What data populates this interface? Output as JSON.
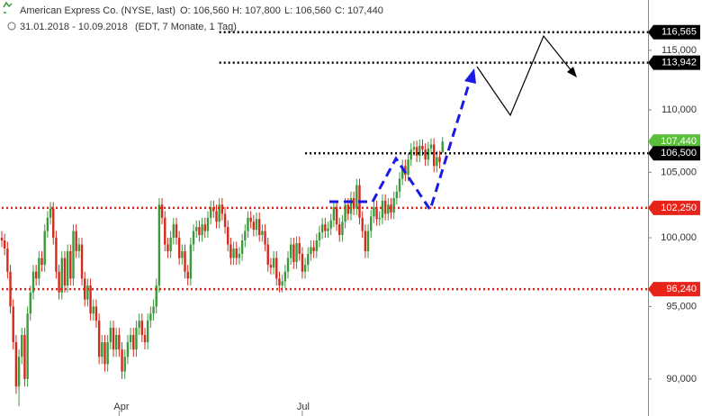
{
  "chart_data": {
    "type": "candlestick",
    "header": {
      "name": "American Express Co. (NYSE, last)",
      "open": "O: 106,560",
      "high": "H: 107,800",
      "low": "L: 106,560",
      "close": "C: 107,440",
      "range": "31.01.2018 - 10.09.2018",
      "info": "(EDT, 7 Monate, 1 Tag)"
    },
    "categories": [
      null,
      null,
      null,
      null,
      null,
      null,
      null,
      null,
      null,
      null,
      null,
      null,
      null,
      null,
      null,
      null,
      null,
      null,
      null,
      null,
      null,
      null,
      null,
      null,
      null,
      null,
      null,
      null,
      null,
      null,
      null,
      null,
      null,
      null,
      null,
      null,
      null,
      null,
      null,
      null,
      null,
      "Apr",
      null,
      null,
      null,
      null,
      null,
      null,
      null,
      null,
      null,
      null,
      null,
      null,
      null,
      null,
      null,
      null,
      null,
      null,
      null,
      null,
      null,
      null,
      null,
      null,
      null,
      null,
      null,
      null,
      null,
      null,
      null,
      null,
      null,
      null,
      null,
      null,
      null,
      null,
      null,
      null,
      null,
      null,
      null,
      null,
      null,
      null,
      null,
      null,
      null,
      null,
      null,
      null,
      null,
      null,
      null,
      null,
      null,
      null,
      null,
      null,
      null,
      null,
      null,
      "Jul",
      null,
      null,
      null,
      null,
      null,
      null,
      null,
      null,
      null,
      null,
      null,
      null,
      null,
      null,
      null,
      null,
      null,
      null,
      null,
      null,
      null,
      null,
      null,
      null,
      null,
      null,
      null,
      null,
      null,
      null,
      null,
      null,
      null,
      null,
      null,
      null,
      null,
      null,
      null,
      null,
      null,
      null,
      null,
      null,
      null,
      null,
      null,
      null,
      null
    ],
    "open": [
      100.0,
      99.8,
      99.2,
      97.5,
      95.0,
      92.5,
      89.5,
      91.5,
      93.0,
      90.0,
      94.5,
      96.0,
      97.5,
      97.0,
      98.5,
      98.0,
      100.5,
      101.5,
      102.2,
      100.0,
      97.5,
      96.0,
      98.5,
      96.5,
      99.0,
      97.0,
      100.5,
      99.0,
      99.5,
      97.0,
      95.5,
      96.5,
      94.5,
      95.0,
      94.0,
      91.5,
      92.5,
      91.0,
      92.5,
      93.5,
      92.0,
      93.0,
      92.0,
      90.5,
      91.5,
      92.5,
      93.0,
      92.0,
      93.5,
      94.0,
      93.0,
      92.5,
      94.0,
      94.5,
      95.0,
      96.5,
      102.5,
      101.5,
      99.5,
      99.0,
      100.0,
      101.0,
      100.0,
      98.5,
      99.0,
      97.5,
      97.0,
      99.5,
      100.5,
      100.8,
      100.2,
      101.0,
      100.5,
      101.5,
      102.3,
      102.0,
      101.2,
      102.5,
      101.8,
      100.8,
      99.5,
      98.5,
      99.2,
      98.5,
      98.8,
      99.8,
      100.5,
      101.5,
      101.2,
      100.6,
      101.4,
      100.2,
      100.5,
      99.5,
      98.0,
      97.8,
      98.5,
      97.0,
      96.5,
      96.8,
      97.5,
      98.5,
      99.5,
      98.2,
      99.6,
      98.8,
      97.5,
      98.0,
      98.8,
      99.3,
      99.0,
      99.8,
      100.4,
      101.0,
      100.5,
      100.7,
      101.3,
      102.3,
      101.0,
      100.2,
      101.2,
      102.5,
      101.8,
      103.0,
      102.2,
      104.0,
      101.5,
      100.5,
      99.0,
      100.5,
      101.6,
      102.3,
      101.4,
      101.5,
      102.8,
      101.8,
      102.5,
      101.9,
      103.0,
      103.5,
      104.5,
      105.5,
      104.8,
      106.0,
      106.8,
      107.0,
      106.3,
      107.1,
      106.8,
      106.0,
      106.9,
      107.2,
      105.5,
      106.2,
      106.56
    ],
    "high": [
      100.5,
      100.3,
      99.7,
      98.0,
      95.5,
      93.0,
      92.0,
      93.5,
      93.5,
      95.0,
      96.5,
      98.0,
      98.0,
      99.0,
      99.0,
      101.0,
      102.0,
      102.7,
      102.7,
      100.5,
      98.0,
      99.0,
      99.0,
      99.5,
      99.5,
      101.0,
      101.0,
      100.0,
      100.0,
      97.5,
      97.0,
      97.0,
      95.5,
      95.5,
      94.5,
      93.0,
      93.0,
      93.0,
      94.0,
      94.0,
      93.5,
      93.5,
      92.5,
      92.0,
      93.0,
      93.5,
      93.5,
      94.0,
      94.5,
      94.5,
      93.5,
      94.5,
      95.0,
      95.5,
      97.0,
      103.0,
      103.0,
      102.0,
      100.0,
      100.5,
      101.5,
      101.5,
      100.5,
      99.5,
      99.5,
      98.0,
      100.0,
      101.0,
      101.3,
      101.3,
      101.5,
      101.5,
      102.0,
      102.8,
      102.8,
      102.5,
      103.0,
      103.0,
      102.3,
      101.3,
      100.0,
      99.7,
      99.7,
      99.3,
      100.3,
      101.0,
      102.0,
      102.0,
      101.7,
      101.9,
      101.9,
      101.0,
      101.0,
      100.0,
      98.5,
      99.0,
      99.0,
      97.5,
      97.3,
      98.0,
      99.0,
      100.0,
      100.0,
      100.1,
      100.1,
      99.3,
      98.5,
      99.3,
      99.8,
      99.8,
      100.3,
      100.9,
      101.5,
      101.5,
      101.2,
      101.8,
      102.8,
      102.8,
      101.5,
      101.7,
      103.0,
      103.0,
      103.5,
      103.5,
      104.5,
      104.5,
      102.0,
      101.0,
      101.0,
      102.1,
      102.8,
      102.8,
      102.0,
      103.3,
      103.3,
      103.0,
      103.0,
      103.5,
      104.0,
      105.0,
      106.0,
      106.0,
      106.5,
      107.3,
      107.5,
      107.5,
      107.6,
      107.6,
      107.3,
      107.4,
      107.7,
      107.7,
      106.7,
      106.7,
      107.8
    ],
    "low": [
      99.3,
      98.7,
      97.0,
      94.5,
      92.0,
      89.0,
      88.2,
      91.0,
      89.5,
      89.5,
      94.0,
      95.5,
      96.5,
      96.5,
      97.5,
      97.5,
      100.0,
      101.0,
      99.5,
      97.0,
      95.5,
      95.5,
      96.0,
      96.0,
      96.5,
      96.5,
      98.5,
      98.5,
      96.5,
      95.0,
      95.0,
      94.0,
      94.0,
      93.5,
      91.0,
      91.0,
      90.5,
      90.5,
      92.0,
      91.5,
      91.5,
      91.5,
      90.0,
      90.0,
      91.0,
      92.0,
      91.5,
      91.5,
      93.0,
      92.5,
      92.0,
      92.0,
      93.5,
      94.0,
      94.5,
      96.0,
      101.0,
      99.0,
      98.5,
      98.5,
      99.5,
      99.5,
      98.0,
      98.0,
      97.0,
      96.5,
      96.5,
      99.0,
      100.0,
      99.7,
      99.7,
      100.0,
      100.0,
      101.0,
      101.5,
      100.7,
      100.7,
      101.3,
      100.3,
      99.0,
      98.0,
      98.0,
      98.0,
      98.0,
      98.3,
      99.3,
      100.0,
      100.7,
      100.1,
      100.1,
      99.7,
      99.7,
      99.0,
      97.5,
      97.3,
      97.3,
      96.5,
      96.0,
      96.0,
      96.3,
      97.0,
      98.0,
      97.7,
      97.7,
      98.3,
      97.0,
      97.0,
      97.5,
      98.3,
      98.5,
      98.5,
      99.3,
      99.9,
      100.0,
      100.0,
      100.2,
      100.8,
      100.5,
      99.7,
      99.7,
      100.7,
      101.3,
      101.3,
      101.7,
      101.7,
      101.0,
      100.0,
      98.5,
      98.5,
      100.0,
      101.1,
      100.9,
      100.9,
      101.0,
      101.3,
      101.3,
      101.4,
      101.4,
      102.5,
      103.0,
      104.0,
      104.3,
      104.3,
      105.5,
      106.3,
      105.8,
      105.8,
      106.3,
      105.5,
      105.5,
      106.4,
      105.0,
      105.0,
      105.3,
      106.56
    ],
    "close": [
      99.8,
      99.2,
      97.5,
      95.0,
      92.5,
      89.5,
      91.5,
      93.0,
      90.0,
      94.5,
      96.0,
      97.5,
      97.0,
      98.5,
      98.0,
      100.5,
      101.5,
      102.2,
      100.0,
      97.5,
      96.0,
      98.5,
      96.5,
      99.0,
      97.0,
      100.5,
      99.0,
      99.5,
      97.0,
      95.5,
      96.5,
      94.5,
      95.0,
      94.0,
      91.5,
      92.5,
      91.0,
      92.5,
      93.5,
      92.0,
      93.0,
      92.0,
      90.5,
      91.5,
      92.5,
      93.0,
      92.0,
      93.5,
      94.0,
      93.0,
      92.5,
      94.0,
      94.5,
      95.0,
      96.5,
      102.5,
      101.5,
      99.5,
      99.0,
      100.0,
      101.0,
      100.0,
      98.5,
      99.0,
      97.5,
      97.0,
      99.5,
      100.5,
      100.8,
      100.2,
      101.0,
      100.5,
      101.5,
      102.3,
      102.0,
      101.2,
      102.5,
      101.8,
      100.8,
      99.5,
      98.5,
      99.2,
      98.5,
      98.8,
      99.8,
      100.5,
      101.5,
      101.2,
      100.6,
      101.4,
      100.2,
      100.5,
      99.5,
      98.0,
      97.8,
      98.5,
      97.0,
      96.5,
      96.8,
      97.5,
      98.5,
      99.5,
      98.2,
      99.6,
      98.8,
      97.5,
      98.0,
      98.8,
      99.3,
      99.0,
      99.8,
      100.4,
      101.0,
      100.5,
      100.7,
      101.3,
      102.3,
      101.0,
      100.2,
      101.2,
      102.5,
      101.8,
      103.0,
      102.2,
      104.0,
      101.5,
      100.5,
      99.0,
      100.5,
      101.6,
      102.3,
      101.4,
      101.5,
      102.8,
      101.8,
      102.5,
      101.9,
      103.0,
      103.5,
      104.5,
      105.5,
      104.8,
      106.0,
      106.8,
      107.0,
      106.3,
      107.1,
      106.8,
      106.0,
      106.9,
      107.2,
      105.5,
      106.2,
      105.8,
      107.44
    ],
    "up_color": "#3c9a3c",
    "down_color": "#d42a1e",
    "log_scale": true,
    "ylim": [
      87.55,
      119.4
    ],
    "yticks": [
      {
        "value": 90,
        "label": "90,000"
      },
      {
        "value": 95,
        "label": "95,000"
      },
      {
        "value": 100,
        "label": "100,000"
      },
      {
        "value": 105,
        "label": "105,000"
      },
      {
        "value": 110,
        "label": "110,000"
      },
      {
        "value": 115,
        "label": "115,000"
      }
    ],
    "levels": [
      {
        "value": 116.565,
        "label": "116,565",
        "color": "#000000",
        "start": 76,
        "line": true
      },
      {
        "value": 113.942,
        "label": "113,942",
        "color": "#000000",
        "start": 76,
        "line": true
      },
      {
        "value": 107.44,
        "label": "107,440",
        "color": "#5cbf3c",
        "start": 0,
        "line": false
      },
      {
        "value": 106.5,
        "label": "106,500",
        "color": "#000000",
        "start": 106,
        "line": true
      },
      {
        "value": 102.25,
        "label": "102,250",
        "color": "#e8231a",
        "start": 0,
        "line": true
      },
      {
        "value": 96.24,
        "label": "96,240",
        "color": "#e8231a",
        "start": 0,
        "line": true
      }
    ]
  }
}
